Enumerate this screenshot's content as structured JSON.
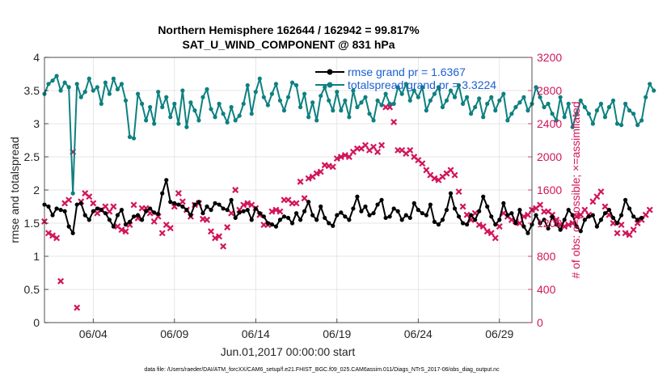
{
  "chart_data": {
    "type": "line",
    "title": "Northern Hemisphere 162644 / 162942 = 99.817%",
    "subtitle": "SAT_U_WIND_COMPONENT @ 831 hPa",
    "xlabel": "Jun.01,2017 00:00:00 start",
    "ylabel": "rmse and totalspread",
    "y2label": "# of obs: o=possible; ×=assimilated",
    "footnote": "data file: /Users/raeder/DAI/ATM_forcXX/CAM6_setup/f.e21.FHIST_BGC.f09_025.CAM6assim.011/Diags_NTrS_2017-06/obs_diag_output.nc",
    "x_ticks": [
      "06/04",
      "06/09",
      "06/14",
      "06/19",
      "06/24",
      "06/29"
    ],
    "x_tick_days": [
      4,
      9,
      14,
      19,
      24,
      29
    ],
    "xlim": [
      1.0,
      31.0
    ],
    "ylim": [
      0,
      4
    ],
    "y_ticks": [
      "0",
      "0.5",
      "1",
      "1.5",
      "2",
      "2.5",
      "3",
      "3.5",
      "4"
    ],
    "y2lim": [
      0,
      3200
    ],
    "y2_ticks": [
      "0",
      "400",
      "800",
      "1200",
      "1600",
      "2000",
      "2400",
      "2800",
      "3200"
    ],
    "grid": true,
    "legend_position": "top-right",
    "x_step_days": 0.25,
    "series": [
      {
        "name": "rmse grand pr = 1.6367",
        "axis": "left",
        "color": "#000000",
        "marker": "circle",
        "values": [
          1.78,
          1.75,
          1.62,
          1.72,
          1.7,
          1.68,
          1.45,
          1.35,
          1.78,
          1.8,
          1.62,
          1.55,
          1.68,
          1.72,
          1.7,
          1.65,
          1.55,
          1.45,
          1.62,
          1.7,
          1.48,
          1.52,
          1.6,
          1.62,
          1.55,
          1.68,
          1.72,
          1.66,
          1.64,
          1.95,
          2.15,
          1.82,
          1.8,
          1.78,
          1.75,
          1.7,
          1.62,
          1.78,
          1.82,
          1.65,
          1.75,
          1.7,
          1.8,
          1.78,
          1.72,
          1.7,
          1.85,
          1.58,
          1.66,
          1.68,
          1.7,
          1.55,
          1.72,
          1.65,
          1.6,
          1.5,
          1.48,
          1.45,
          1.55,
          1.6,
          1.58,
          1.5,
          1.65,
          1.55,
          1.68,
          1.82,
          1.62,
          1.55,
          1.75,
          1.58,
          1.5,
          1.46,
          1.62,
          1.66,
          1.6,
          1.55,
          1.72,
          1.9,
          1.68,
          1.75,
          1.62,
          1.65,
          1.78,
          1.85,
          1.58,
          1.6,
          1.72,
          1.68,
          1.55,
          1.62,
          1.58,
          1.8,
          1.7,
          1.65,
          1.62,
          1.78,
          1.52,
          1.48,
          1.55,
          1.7,
          1.95,
          1.72,
          1.6,
          1.5,
          1.48,
          1.62,
          1.55,
          1.68,
          1.9,
          1.75,
          1.6,
          1.48,
          1.55,
          1.8,
          1.62,
          1.65,
          1.5,
          1.7,
          1.45,
          1.35,
          1.48,
          1.62,
          1.5,
          1.55,
          1.42,
          1.6,
          1.48,
          1.4,
          1.55,
          1.7,
          1.62,
          1.45,
          1.38,
          1.55,
          1.6,
          1.62,
          1.45,
          1.55,
          1.65,
          1.7,
          1.58,
          1.5,
          1.62,
          1.85,
          1.72,
          1.6,
          1.55,
          1.58
        ]
      },
      {
        "name": "totalspread grand pr = 3.3224",
        "axis": "left",
        "color": "#0e8080",
        "marker": "circle",
        "values": [
          3.45,
          3.6,
          3.65,
          3.72,
          3.5,
          3.62,
          3.55,
          1.95,
          3.6,
          3.4,
          3.48,
          3.68,
          3.5,
          3.55,
          3.3,
          3.62,
          3.45,
          3.68,
          3.52,
          3.6,
          3.35,
          2.8,
          2.78,
          3.45,
          3.3,
          3.05,
          3.25,
          3.0,
          3.48,
          3.25,
          3.4,
          3.1,
          3.3,
          3.0,
          3.5,
          2.95,
          3.32,
          3.2,
          3.05,
          3.4,
          3.52,
          3.22,
          3.1,
          3.3,
          3.15,
          3.02,
          3.25,
          3.05,
          3.12,
          3.3,
          3.58,
          3.15,
          3.48,
          3.68,
          3.4,
          3.28,
          3.45,
          3.6,
          3.35,
          3.2,
          3.4,
          3.62,
          3.58,
          3.25,
          3.45,
          3.1,
          3.32,
          3.05,
          3.42,
          3.55,
          3.35,
          3.2,
          3.48,
          3.2,
          3.35,
          3.1,
          3.5,
          3.25,
          3.32,
          3.4,
          3.15,
          3.05,
          3.35,
          3.28,
          3.45,
          3.3,
          3.3,
          3.55,
          3.45,
          3.6,
          3.35,
          3.5,
          3.4,
          3.55,
          3.2,
          3.35,
          3.45,
          3.55,
          3.25,
          3.35,
          3.5,
          3.4,
          3.58,
          3.3,
          3.4,
          3.15,
          3.25,
          3.38,
          3.1,
          3.3,
          3.4,
          3.2,
          3.35,
          3.45,
          3.05,
          3.15,
          3.25,
          3.32,
          3.4,
          3.2,
          3.3,
          3.55,
          3.4,
          3.25,
          3.3,
          3.15,
          3.05,
          3.4,
          3.1,
          3.3,
          2.95,
          3.15,
          3.35,
          3.25,
          3.15,
          3.0,
          3.2,
          3.3,
          3.1,
          3.25,
          3.35,
          3.0,
          2.98,
          3.3,
          3.2,
          3.15,
          2.98,
          3.05,
          3.4,
          3.6,
          3.5
        ]
      },
      {
        "name": "obs assimilated",
        "axis": "right",
        "color": "#d2145a",
        "marker": "x",
        "values": [
          1220,
          1080,
          1050,
          1020,
          500,
          1440,
          1480,
          2060,
          180,
          1460,
          1560,
          1520,
          1440,
          1320,
          1360,
          1400,
          1340,
          1400,
          1160,
          1120,
          1100,
          1180,
          1420,
          1260,
          1380,
          1380,
          1320,
          1220,
          1280,
          1080,
          1180,
          1140,
          1400,
          1560,
          1460,
          1360,
          1280,
          1420,
          1440,
          1250,
          1240,
          1100,
          1020,
          1040,
          920,
          1150,
          1320,
          1600,
          1360,
          1420,
          1440,
          1420,
          1380,
          1300,
          1180,
          1180,
          1340,
          1360,
          1340,
          1480,
          1480,
          1440,
          1440,
          1700,
          1500,
          1740,
          1760,
          1800,
          1820,
          1900,
          1890,
          1880,
          1980,
          2000,
          2020,
          2000,
          2060,
          2100,
          2100,
          2140,
          2080,
          2120,
          2060,
          2140,
          2600,
          2600,
          2420,
          2080,
          2080,
          2040,
          2080,
          2000,
          1960,
          1920,
          1840,
          1780,
          1740,
          1720,
          1760,
          1800,
          1840,
          1780,
          1580,
          1400,
          1300,
          1240,
          1320,
          1180,
          1160,
          1100,
          1080,
          1020,
          1160,
          1320,
          1280,
          1240,
          1220,
          1200,
          1280,
          1300,
          1360,
          1380,
          1420,
          1340,
          1340,
          1300,
          1240,
          1180,
          1160,
          1180,
          1200,
          1280,
          1300,
          1360,
          1300,
          1460,
          1520,
          1580,
          1400,
          1300,
          1200,
          1080,
          1180,
          1080,
          1060,
          1120,
          1200,
          1240,
          1300,
          1360
        ]
      }
    ]
  }
}
